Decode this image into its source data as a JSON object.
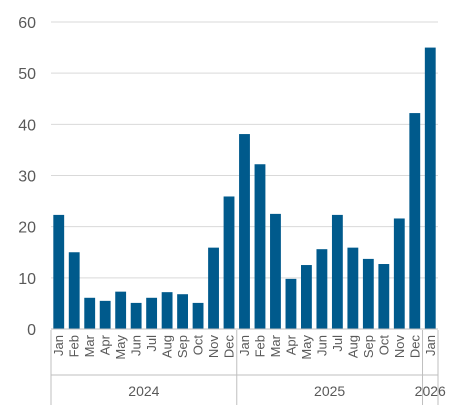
{
  "chart_data": {
    "type": "bar",
    "categories": [
      "Jan",
      "Feb",
      "Mar",
      "Apr",
      "May",
      "Jun",
      "Jul",
      "Aug",
      "Sep",
      "Oct",
      "Nov",
      "Dec",
      "Jan",
      "Feb",
      "Mar",
      "Apr",
      "May",
      "Jun",
      "Jul",
      "Aug",
      "Sep",
      "Oct",
      "Nov",
      "Dec",
      "Jan"
    ],
    "years": [
      {
        "label": "2024",
        "count": 12
      },
      {
        "label": "2025",
        "count": 12
      },
      {
        "label": "2026",
        "count": 1
      }
    ],
    "values": [
      22.3,
      15.0,
      6.1,
      5.5,
      7.3,
      5.1,
      6.1,
      7.2,
      6.8,
      5.1,
      15.9,
      25.9,
      38.1,
      32.2,
      22.5,
      9.8,
      12.5,
      15.6,
      22.3,
      15.9,
      13.7,
      12.7,
      21.6,
      42.2,
      55.0
    ],
    "ylim": [
      0,
      60
    ],
    "yticks": [
      0,
      10,
      20,
      30,
      40,
      50,
      60
    ],
    "bar_color": "#005a8c",
    "grid": true,
    "title": "",
    "xlabel": "",
    "ylabel": ""
  }
}
